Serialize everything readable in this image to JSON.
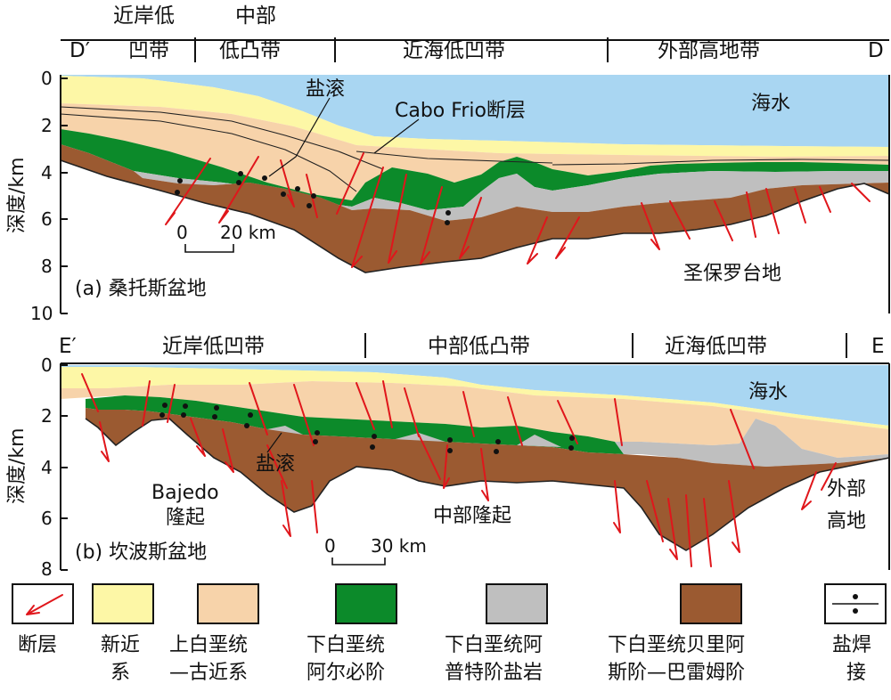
{
  "colors": {
    "sea": "#a9d6f2",
    "cenozoic": "#fdf7a6",
    "upper_cretaceous": "#f7d3aa",
    "albian": "#0c8a2a",
    "aptian_salt": "#bfbfbf",
    "berriasian_barremian": "#9b5a31",
    "fault": "#e0161b"
  },
  "panel_a": {
    "left_end": "D′",
    "right_end": "D",
    "zones": [
      "近岸低",
      "凹带",
      "中部",
      "低凸带",
      "近海低凹带",
      "外部高地带"
    ],
    "y_axis_label": "深度/km",
    "y_ticks": [
      "0",
      "2",
      "4",
      "6",
      "8",
      "10"
    ],
    "labels": {
      "sea": "海水",
      "salt_roller": "盐滚",
      "fault_name": "Cabo Frio断层",
      "plateau": "圣保罗台地",
      "title": "(a) 桑托斯盆地"
    },
    "scale_zero": "0",
    "scale_value": "20 km"
  },
  "panel_b": {
    "left_end": "E′",
    "right_end": "E",
    "zones": [
      "近岸低凹带",
      "中部低凸带",
      "近海低凹带"
    ],
    "y_axis_label": "深度/km",
    "y_ticks": [
      "0",
      "2",
      "4",
      "6",
      "8"
    ],
    "labels": {
      "sea": "海水",
      "salt_roller": "盐滚",
      "bajedo_1": "Bajedo",
      "bajedo_2": "隆起",
      "central_uplift": "中部隆起",
      "outer_high_1": "外部",
      "outer_high_2": "高地",
      "title": "(b) 坎波斯盆地"
    },
    "scale_zero": "0",
    "scale_value": "30 km"
  },
  "legend": [
    {
      "id": "fault",
      "line1": "断层",
      "line2": ""
    },
    {
      "id": "cenozoic",
      "line1": "新近",
      "line2": "系"
    },
    {
      "id": "upper_cretaceous",
      "line1": "上白垩统",
      "line2": "—古近系"
    },
    {
      "id": "albian",
      "line1": "下白垩统",
      "line2": "阿尔必阶"
    },
    {
      "id": "aptian_salt",
      "line1": "下白垩统阿",
      "line2": "普特阶盐岩"
    },
    {
      "id": "berriasian_barremian",
      "line1": "下白垩统贝里阿",
      "line2": "斯阶—巴雷姆阶"
    },
    {
      "id": "salt_weld",
      "line1": "盐焊",
      "line2": "接"
    }
  ]
}
